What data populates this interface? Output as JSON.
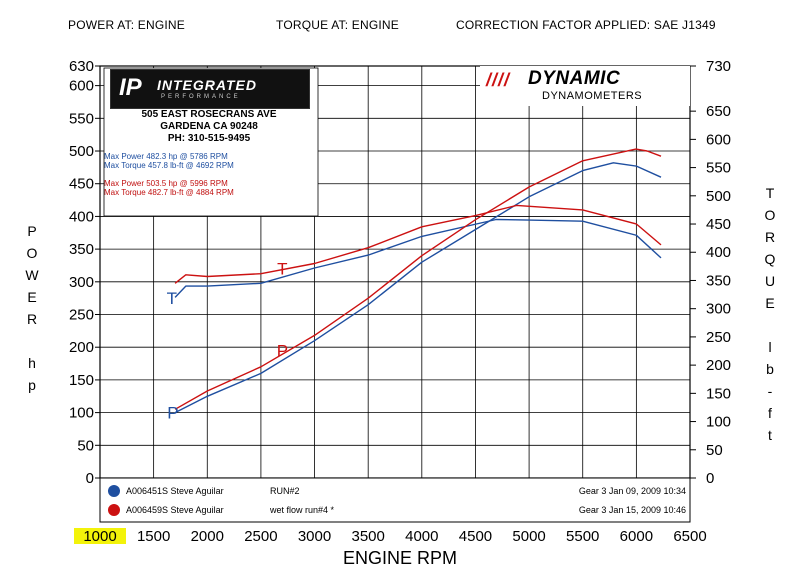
{
  "header": {
    "power_at": "POWER AT: ENGINE",
    "torque_at": "TORQUE AT: ENGINE",
    "correction": "CORRECTION FACTOR APPLIED: SAE J1349"
  },
  "logos": {
    "ip_mark": "IP",
    "ip_word": "INTEGRATED",
    "ip_sub": "PERFORMANCE",
    "addr_line1": "505 EAST ROSECRANS AVE",
    "addr_line2": "GARDENA  CA  90248",
    "addr_line3": "PH: 310-515-9495",
    "dyn_big": "DYNAMIC",
    "dyn_small": "DYNAMOMETERS"
  },
  "maxbox": {
    "blue_power": "Max Power 482.3 hp @ 5786 RPM",
    "blue_torque": "Max Torque 457.8 lb-ft @ 4692 RPM",
    "red_power": "Max Power 503.5 hp @ 5996 RPM",
    "red_torque": "Max Torque 482.7 lb-ft @ 4884 RPM"
  },
  "legend": [
    {
      "id": "A006451S Steve Aguilar",
      "run": "RUN#2",
      "info": "Gear 3 Jan 09, 2009 10:34",
      "color": "#1f4fa0"
    },
    {
      "id": "A006459S Steve Aguilar",
      "run": "wet flow run#4 *",
      "info": "Gear 3 Jan 15, 2009 10:46",
      "color": "#cc1111"
    }
  ],
  "chart_data": {
    "type": "line",
    "xlabel": "ENGINE RPM",
    "ylabel_left": "POWER hp",
    "ylabel_right": "TORQUE lb-ft",
    "xlim": [
      1000,
      6500
    ],
    "ylim_left": [
      0,
      630
    ],
    "ylim_right": [
      0,
      730
    ],
    "x_ticks": [
      1000,
      1500,
      2000,
      2500,
      3000,
      3500,
      4000,
      4500,
      5000,
      5500,
      6000,
      6500
    ],
    "y_left_ticks": [
      0,
      50,
      100,
      150,
      200,
      250,
      300,
      350,
      400,
      450,
      500,
      550,
      600,
      630
    ],
    "y_right_ticks": [
      0,
      50,
      100,
      150,
      200,
      250,
      300,
      350,
      400,
      450,
      500,
      550,
      600,
      650,
      730
    ],
    "grid": true,
    "series": [
      {
        "name": "A006451S Steve Aguilar RUN#2",
        "kind": "power",
        "axis": "left",
        "color": "#1f4fa0",
        "label": "P",
        "points": [
          [
            1700,
            100
          ],
          [
            2000,
            125
          ],
          [
            2500,
            160
          ],
          [
            3000,
            210
          ],
          [
            3500,
            265
          ],
          [
            4000,
            330
          ],
          [
            4500,
            380
          ],
          [
            5000,
            430
          ],
          [
            5500,
            470
          ],
          [
            5786,
            482
          ],
          [
            6000,
            477
          ],
          [
            6230,
            460
          ]
        ]
      },
      {
        "name": "A006451S Steve Aguilar RUN#2",
        "kind": "torque",
        "axis": "right",
        "color": "#1f4fa0",
        "label": "T",
        "points": [
          [
            1700,
            320
          ],
          [
            1800,
            340
          ],
          [
            2000,
            340
          ],
          [
            2500,
            345
          ],
          [
            3000,
            372
          ],
          [
            3500,
            395
          ],
          [
            4000,
            428
          ],
          [
            4692,
            458
          ],
          [
            5000,
            457
          ],
          [
            5500,
            455
          ],
          [
            6000,
            430
          ],
          [
            6230,
            390
          ]
        ]
      },
      {
        "name": "A006459S Steve Aguilar wet flow run#4 *",
        "kind": "power",
        "axis": "left",
        "color": "#cc1111",
        "label": "P",
        "points": [
          [
            1700,
            105
          ],
          [
            2000,
            133
          ],
          [
            2500,
            170
          ],
          [
            3000,
            218
          ],
          [
            3500,
            275
          ],
          [
            4000,
            340
          ],
          [
            4500,
            395
          ],
          [
            5000,
            445
          ],
          [
            5500,
            485
          ],
          [
            5996,
            503
          ],
          [
            6100,
            500
          ],
          [
            6230,
            492
          ]
        ]
      },
      {
        "name": "A006459S Steve Aguilar wet flow run#4 *",
        "kind": "torque",
        "axis": "right",
        "color": "#cc1111",
        "label": "T",
        "points": [
          [
            1700,
            345
          ],
          [
            1800,
            360
          ],
          [
            2000,
            357
          ],
          [
            2500,
            362
          ],
          [
            3000,
            380
          ],
          [
            3500,
            408
          ],
          [
            4000,
            445
          ],
          [
            4500,
            465
          ],
          [
            4884,
            483
          ],
          [
            5500,
            475
          ],
          [
            6000,
            450
          ],
          [
            6230,
            413
          ]
        ]
      }
    ],
    "annotations": [
      {
        "text": "P",
        "color": "#1f4fa0",
        "x": 1680,
        "y": 100,
        "axis": "left"
      },
      {
        "text": "T",
        "color": "#1f4fa0",
        "x": 1670,
        "y": 275,
        "axis": "left"
      },
      {
        "text": "P",
        "color": "#cc1111",
        "x": 2700,
        "y": 195,
        "axis": "left"
      },
      {
        "text": "T",
        "color": "#cc1111",
        "x": 2700,
        "y": 320,
        "axis": "left"
      }
    ],
    "left_axis_title": [
      "P",
      "O",
      "W",
      "E",
      "R",
      "",
      "h",
      "p"
    ],
    "right_axis_title": [
      "T",
      "O",
      "R",
      "Q",
      "U",
      "E",
      "",
      "l",
      "b",
      "-",
      "f",
      "t"
    ]
  }
}
